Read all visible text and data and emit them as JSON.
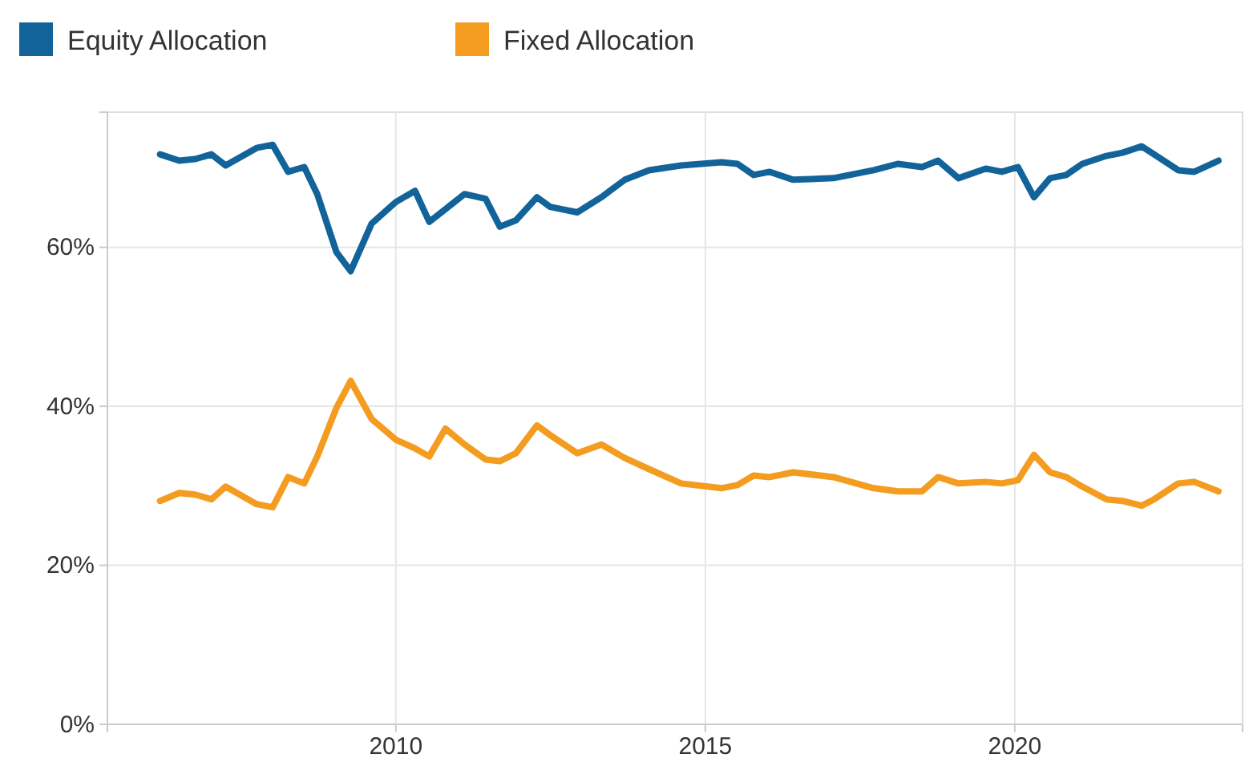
{
  "chart_data": {
    "type": "line",
    "x": [
      2006.19,
      2006.5,
      2006.76,
      2007.02,
      2007.25,
      2007.75,
      2008.01,
      2008.26,
      2008.52,
      2008.73,
      2009.04,
      2009.27,
      2009.61,
      2010.0,
      2010.31,
      2010.54,
      2010.8,
      2011.11,
      2011.45,
      2011.68,
      2011.94,
      2012.28,
      2012.49,
      2012.93,
      2013.32,
      2013.7,
      2014.09,
      2014.61,
      2015.26,
      2015.52,
      2015.78,
      2016.04,
      2016.42,
      2017.07,
      2017.72,
      2018.11,
      2018.5,
      2018.76,
      2019.09,
      2019.53,
      2019.79,
      2020.05,
      2020.31,
      2020.57,
      2020.83,
      2021.09,
      2021.48,
      2021.74,
      2022.05,
      2022.25,
      2022.64,
      2022.9,
      2023.29
    ],
    "series": [
      {
        "name": "Equity Allocation",
        "color": "#12639a",
        "values": [
          71.7,
          70.9,
          71.1,
          71.7,
          70.3,
          72.5,
          72.9,
          69.5,
          70.1,
          66.7,
          59.4,
          57.0,
          63.0,
          65.7,
          67.1,
          63.2,
          64.8,
          66.7,
          66.1,
          62.6,
          63.4,
          66.3,
          65.1,
          64.4,
          66.3,
          68.5,
          69.7,
          70.3,
          70.7,
          70.5,
          69.1,
          69.5,
          68.5,
          68.7,
          69.7,
          70.5,
          70.1,
          70.9,
          68.7,
          69.9,
          69.5,
          70.1,
          66.3,
          68.7,
          69.1,
          70.5,
          71.5,
          71.9,
          72.7,
          71.7,
          69.7,
          69.5,
          70.9
        ]
      },
      {
        "name": "Fixed Allocation",
        "color": "#f39c1f",
        "values": [
          28.1,
          29.1,
          28.9,
          28.3,
          29.9,
          27.7,
          27.3,
          31.1,
          30.3,
          33.7,
          39.8,
          43.2,
          38.4,
          35.8,
          34.7,
          33.7,
          37.2,
          35.2,
          33.3,
          33.1,
          34.1,
          37.6,
          36.4,
          34.1,
          35.2,
          33.5,
          32.1,
          30.3,
          29.7,
          30.1,
          31.3,
          31.1,
          31.7,
          31.1,
          29.7,
          29.3,
          29.3,
          31.1,
          30.3,
          30.5,
          30.3,
          30.7,
          33.9,
          31.7,
          31.1,
          29.9,
          28.3,
          28.1,
          27.5,
          28.3,
          30.3,
          30.5,
          29.3
        ]
      }
    ],
    "xlim": [
      2005.34,
      2023.68
    ],
    "xticks": [
      2010,
      2015,
      2020
    ],
    "ylim": [
      0,
      77
    ],
    "yticks": [
      {
        "value": 0,
        "label": "0%"
      },
      {
        "value": 20,
        "label": "20%"
      },
      {
        "value": 40,
        "label": "40%"
      },
      {
        "value": 60,
        "label": "60%"
      }
    ],
    "grid": true,
    "legend": "top left",
    "line_style": "solid",
    "marker": "none"
  }
}
